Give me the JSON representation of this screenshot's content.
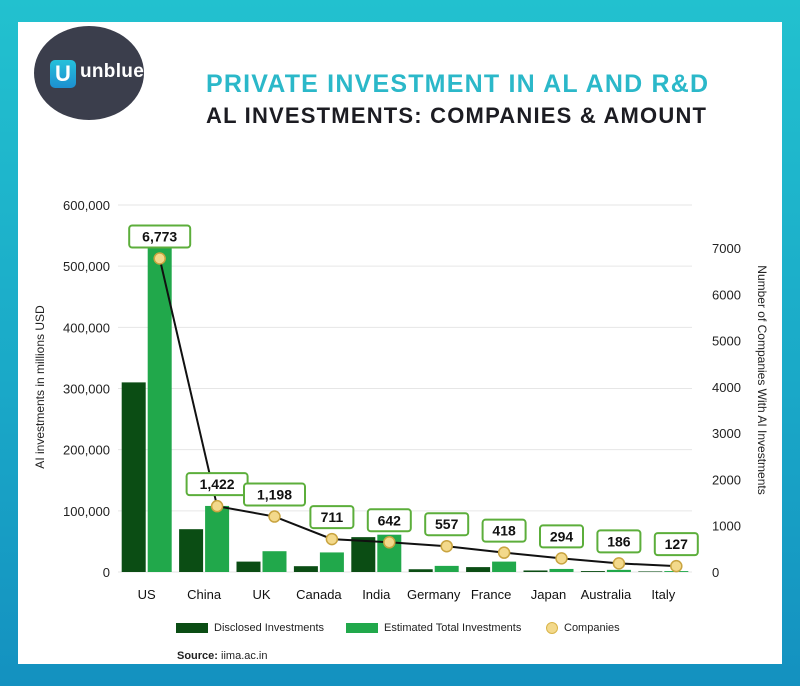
{
  "brand": {
    "logo_text": "unblue",
    "logo_mark": "U"
  },
  "title": "PRIVATE INVESTMENT IN AL AND R&D",
  "subtitle": "AL INVESTMENTS: COMPANIES & AMOUNT",
  "source": {
    "label": "Source:",
    "value": "iima.ac.in"
  },
  "colors": {
    "disclosed": "#0b4d14",
    "estimated": "#21a84b",
    "companies_marker": "#f3d98b",
    "line": "#111111",
    "callout_border": "#5cae3b"
  },
  "chart_data": {
    "type": "bar",
    "categories": [
      "US",
      "China",
      "UK",
      "Canada",
      "India",
      "Germany",
      "France",
      "Japan",
      "Australia",
      "Italy"
    ],
    "series": [
      {
        "name": "Disclosed Investments",
        "axis": "left",
        "values": [
          310000,
          70000,
          17000,
          9500,
          57000,
          4500,
          8000,
          2500,
          1500,
          900
        ]
      },
      {
        "name": "Estimated Total Investments",
        "axis": "left",
        "values": [
          530000,
          108000,
          34000,
          32000,
          61000,
          10000,
          17000,
          5000,
          3500,
          1500
        ]
      },
      {
        "name": "Companies",
        "axis": "right",
        "type": "line",
        "values": [
          6773,
          1422,
          1198,
          711,
          642,
          557,
          418,
          294,
          186,
          127
        ]
      }
    ],
    "data_labels": [
      "6,773",
      "1,422",
      "1,198",
      "711",
      "642",
      "557",
      "418",
      "294",
      "186",
      "127"
    ],
    "ylabel": "AI investments in millions USD",
    "y2label": "Number of Companies With AI Investments",
    "ylim": [
      0,
      600000
    ],
    "y2lim": [
      0,
      8000
    ],
    "yticks": [
      "0",
      "100,000",
      "200,000",
      "300,000",
      "400,000",
      "500,000",
      "600,000"
    ],
    "y2ticks": [
      "0",
      "1000",
      "2000",
      "3000",
      "4000",
      "5000",
      "6000",
      "7000"
    ],
    "grid": true,
    "legend_position": "bottom"
  }
}
